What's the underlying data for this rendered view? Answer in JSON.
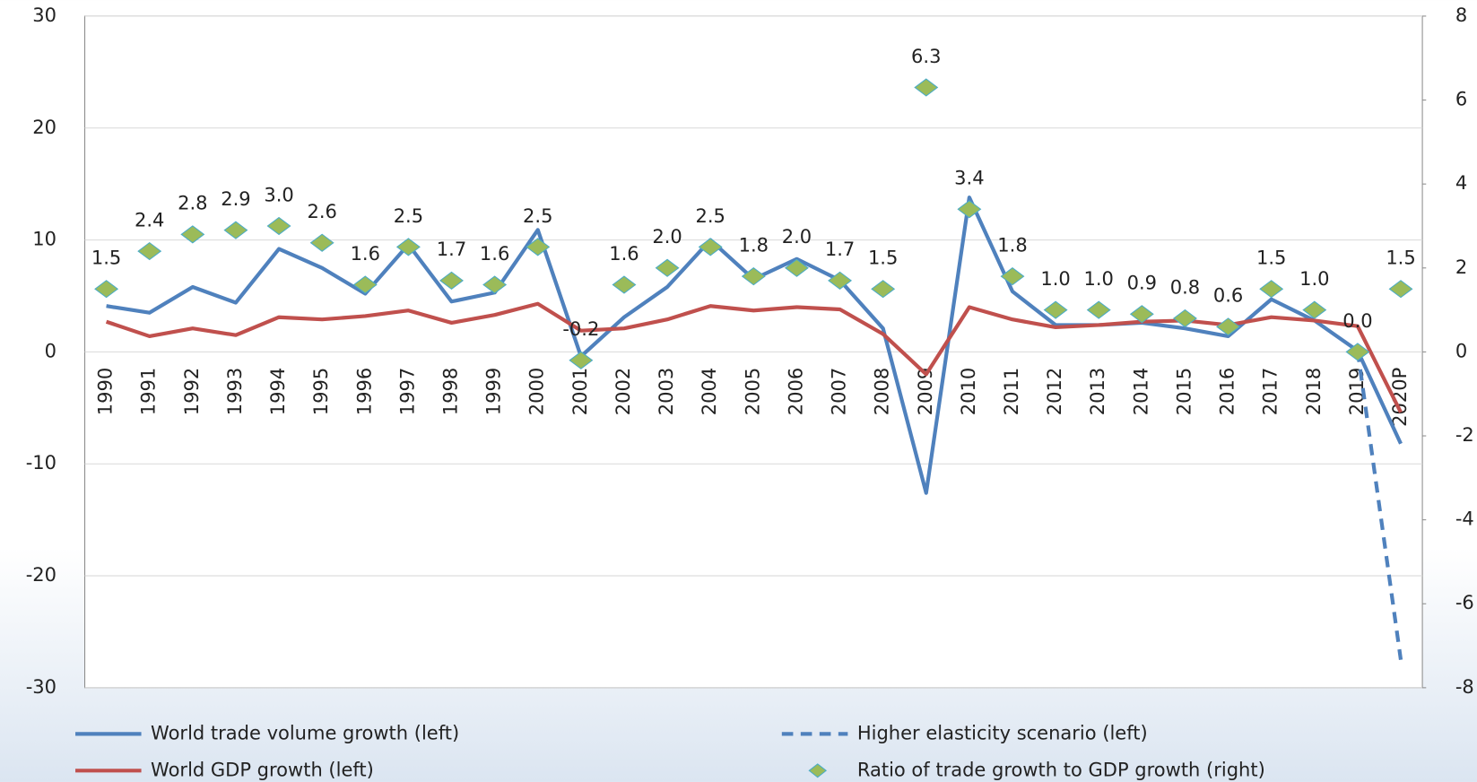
{
  "chart_data": {
    "type": "line",
    "categories": [
      "1990",
      "1991",
      "1992",
      "1993",
      "1994",
      "1995",
      "1996",
      "1997",
      "1998",
      "1999",
      "2000",
      "2001",
      "2002",
      "2003",
      "2004",
      "2005",
      "2006",
      "2007",
      "2008",
      "2009",
      "2010",
      "2011",
      "2012",
      "2013",
      "2014",
      "2015",
      "2016",
      "2017",
      "2018",
      "2019",
      "2020P"
    ],
    "ylim": [
      -30,
      30
    ],
    "yticks": [
      -30,
      -20,
      -10,
      0,
      10,
      20,
      30
    ],
    "y2lim": [
      -8,
      8
    ],
    "y2ticks": [
      -8,
      -6,
      -4,
      -2,
      0,
      2,
      4,
      6,
      8
    ],
    "grid": true,
    "legend": "bottom",
    "series": [
      {
        "name": "World trade volume growth (left)",
        "color": "#4f81bd",
        "style": "solid",
        "values": [
          4.1,
          3.5,
          5.8,
          4.4,
          9.2,
          7.5,
          5.2,
          9.6,
          4.5,
          5.3,
          10.9,
          -0.4,
          3.1,
          5.8,
          10.0,
          6.5,
          8.3,
          6.4,
          2.1,
          -12.6,
          13.8,
          5.4,
          2.4,
          2.4,
          2.6,
          2.1,
          1.4,
          4.7,
          2.8,
          0.1,
          -8.2
        ]
      },
      {
        "name": "Higher elasticity scenario (left)",
        "color": "#4f81bd",
        "style": "dashed",
        "values": [
          null,
          null,
          null,
          null,
          null,
          null,
          null,
          null,
          null,
          null,
          null,
          null,
          null,
          null,
          null,
          null,
          null,
          null,
          null,
          null,
          null,
          null,
          null,
          null,
          null,
          null,
          null,
          null,
          null,
          0.1,
          -27.5
        ]
      },
      {
        "name": "World GDP growth (left)",
        "color": "#c0504d",
        "style": "solid",
        "values": [
          2.7,
          1.4,
          2.1,
          1.5,
          3.1,
          2.9,
          3.2,
          3.7,
          2.6,
          3.3,
          4.3,
          1.9,
          2.1,
          2.9,
          4.1,
          3.7,
          4.0,
          3.8,
          1.6,
          -2.0,
          4.0,
          2.9,
          2.2,
          2.4,
          2.7,
          2.8,
          2.4,
          3.1,
          2.8,
          2.3,
          -5.4
        ]
      },
      {
        "name": "Ratio of trade growth to GDP growth (right)",
        "color": "#9bbb59",
        "style": "markers",
        "axis": "y2",
        "values": [
          1.5,
          2.4,
          2.8,
          2.9,
          3.0,
          2.6,
          1.6,
          2.5,
          1.7,
          1.6,
          2.5,
          -0.2,
          1.6,
          2.0,
          2.5,
          1.8,
          2.0,
          1.7,
          1.5,
          6.3,
          3.4,
          1.8,
          1.0,
          1.0,
          0.9,
          0.8,
          0.6,
          1.5,
          1.0,
          0.0,
          1.5
        ],
        "value_labels": [
          "1.5",
          "2.4",
          "2.8",
          "2.9",
          "3.0",
          "2.6",
          "1.6",
          "2.5",
          "1.7",
          "1.6",
          "2.5",
          "-0.2",
          "1.6",
          "2.0",
          "2.5",
          "1.8",
          "2.0",
          "1.7",
          "1.5",
          "6.3",
          "3.4",
          "1.8",
          "1.0",
          "1.0",
          "0.9",
          "0.8",
          "0.6",
          "1.5",
          "1.0",
          "0.0",
          "1.5"
        ]
      }
    ]
  }
}
